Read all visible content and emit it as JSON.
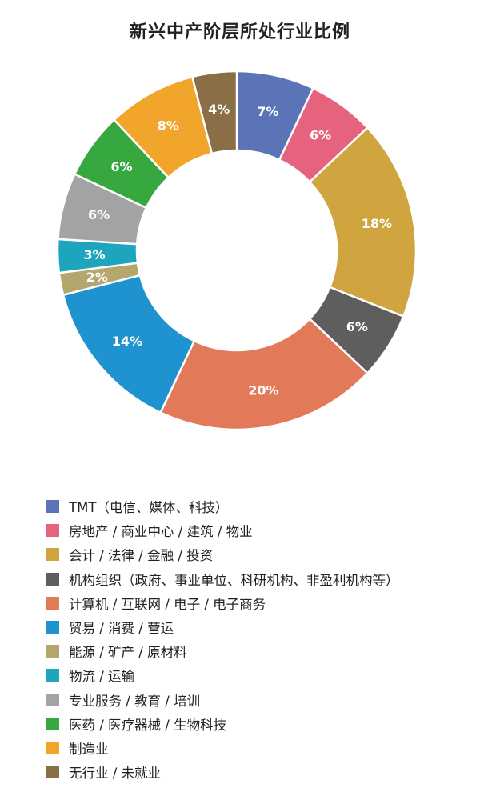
{
  "chart_data": {
    "type": "pie",
    "title": "新兴中产阶层所处行业比例",
    "series": [
      {
        "name": "TMT（电信、媒体、科技）",
        "value": 7,
        "label": "7%",
        "color": "#5b74b8"
      },
      {
        "name": "房地产 / 商业中心 / 建筑 / 物业",
        "value": 6,
        "label": "6%",
        "color": "#e6637e"
      },
      {
        "name": "会计 / 法律 / 金融 / 投资",
        "value": 18,
        "label": "18%",
        "color": "#d0a43e"
      },
      {
        "name": "机构组织（政府、事业单位、科研机构、非盈利机构等）",
        "value": 6,
        "label": "6%",
        "color": "#5e5e5e"
      },
      {
        "name": "计算机 / 互联网 / 电子 / 电子商务",
        "value": 20,
        "label": "20%",
        "color": "#e27a5a"
      },
      {
        "name": "贸易 / 消费 / 营运",
        "value": 14,
        "label": "14%",
        "color": "#1f93cf"
      },
      {
        "name": "能源 / 矿产 / 原材料",
        "value": 2,
        "label": "2%",
        "color": "#b5a66e"
      },
      {
        "name": "物流 / 运输",
        "value": 3,
        "label": "3%",
        "color": "#1ea5be"
      },
      {
        "name": "专业服务 / 教育 / 培训",
        "value": 6,
        "label": "6%",
        "color": "#a3a3a3"
      },
      {
        "name": "医药 / 医疗器械 / 生物科技",
        "value": 6,
        "label": "6%",
        "color": "#36a83f"
      },
      {
        "name": "制造业",
        "value": 8,
        "label": "8%",
        "color": "#f1a52a"
      },
      {
        "name": "无行业 / 未就业",
        "value": 4,
        "label": "4%",
        "color": "#8a6e45"
      }
    ],
    "legend_position": "bottom"
  }
}
